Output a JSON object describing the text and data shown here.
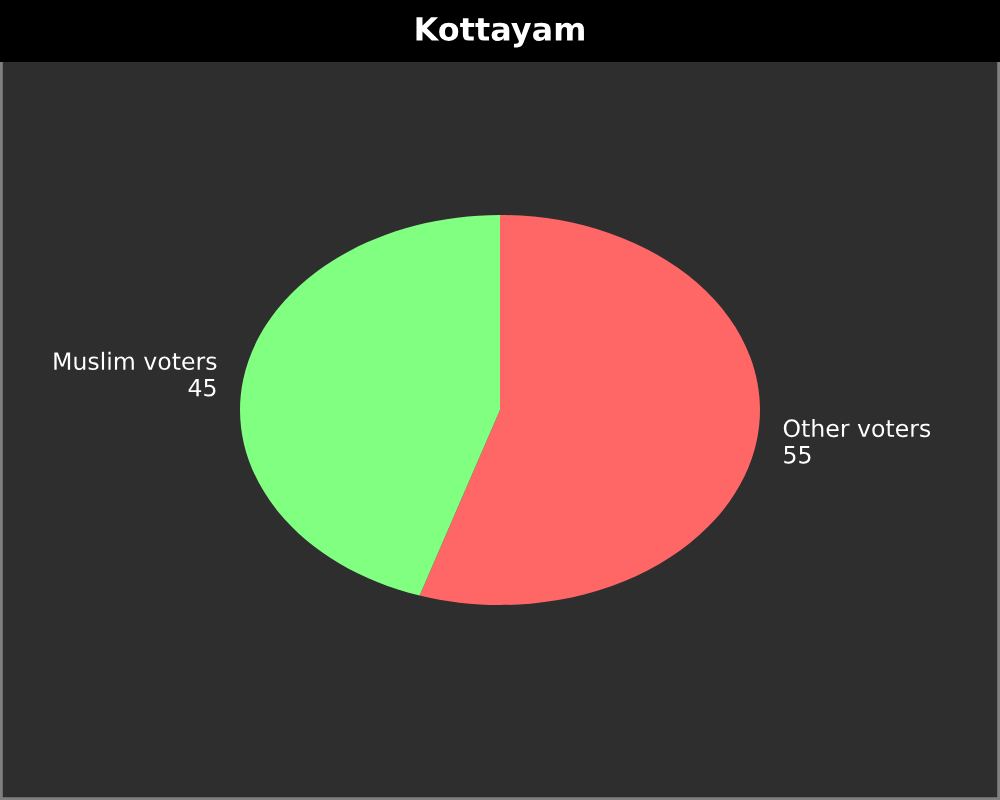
{
  "chart_data": {
    "type": "pie",
    "title": "Kottayam",
    "categories": [
      "Other voters",
      "Muslim voters"
    ],
    "values": [
      55,
      45
    ],
    "colors": [
      "#ff6666",
      "#80ff80"
    ],
    "data_labels": true
  }
}
